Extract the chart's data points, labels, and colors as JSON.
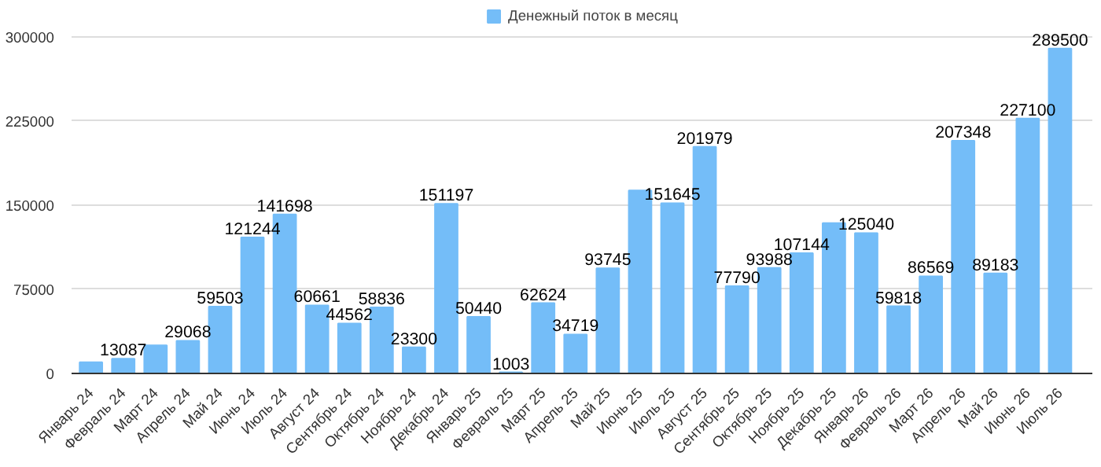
{
  "chart_data": {
    "type": "bar",
    "categories": [
      "Январь 24",
      "Февраль 24",
      "Март 24",
      "Апрель 24",
      "Май 24",
      "Июнь 24",
      "Июль 24",
      "Август 24",
      "Сентябрь 24",
      "Октябрь 24",
      "Ноябрь 24",
      "Декабрь 24",
      "Январь 25",
      "Февраль 25",
      "Март 25",
      "Апрель 25",
      "Май 25",
      "Июнь 25",
      "Июль 25",
      "Август 25",
      "Сентябрь 25",
      "Октябрь 25",
      "Ноябрь 25",
      "Декабрь 25",
      "Январь 26",
      "Февраль 26",
      "Март 26",
      "Апрель 26",
      "Май 26",
      "Июнь 26",
      "Июль 26"
    ],
    "series": [
      {
        "name": "Денежный поток в месяц",
        "color": "#74bdf8",
        "values": [
          10000,
          13087,
          25000,
          29068,
          59503,
          121244,
          141698,
          60661,
          44562,
          58836,
          23300,
          151197,
          50440,
          1003,
          62624,
          34719,
          93745,
          163000,
          151645,
          201979,
          77790,
          93988,
          107144,
          134000,
          125040,
          59818,
          86569,
          207348,
          89183,
          227100,
          289500
        ],
        "value_labels": [
          null,
          "13087",
          null,
          "29068",
          "59503",
          "121244",
          "141698",
          "60661",
          "44562",
          "58836",
          "23300",
          "151197",
          "50440",
          "1003",
          "62624",
          "34719",
          "93745",
          null,
          "151645",
          "201979",
          "77790",
          "93988",
          "107144",
          null,
          "125040",
          "59818",
          "86569",
          "207348",
          "89183",
          "227100",
          "289500"
        ]
      }
    ],
    "ylim": [
      0,
      325000
    ],
    "yticks": [
      0,
      75000,
      150000,
      225000,
      300000
    ],
    "grid": "y",
    "legend": "top"
  }
}
